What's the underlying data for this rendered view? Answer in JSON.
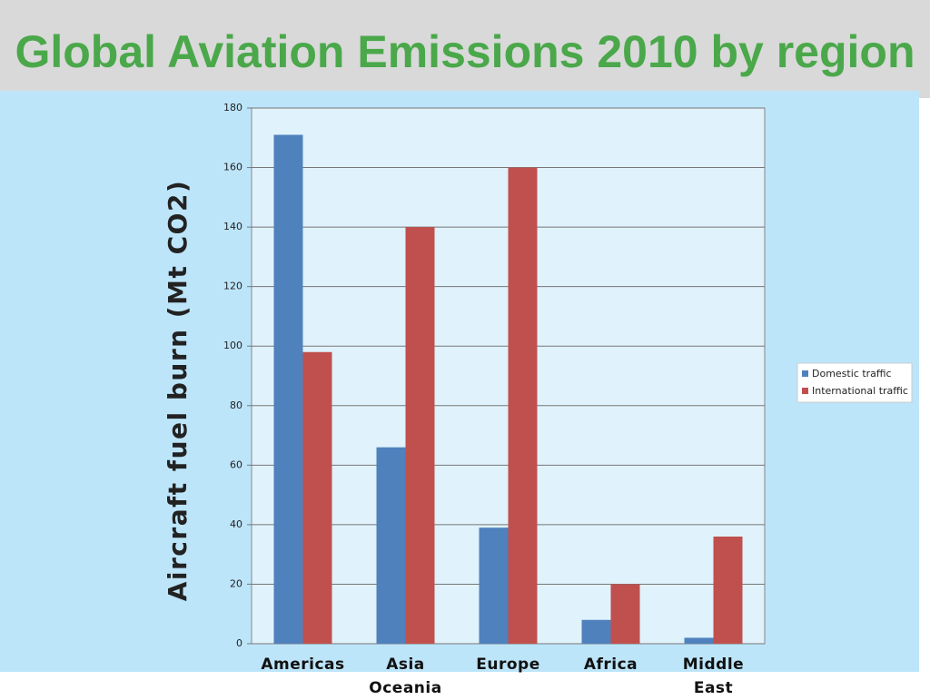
{
  "chart_data": {
    "type": "bar",
    "title": "Global Aviation Emissions 2010 by region",
    "y_label": "Aircraft fuel burn (Mt CO2)",
    "categories": [
      "Americas",
      "Asia Oceania",
      "Europe",
      "Africa",
      "Middle East"
    ],
    "series": [
      {
        "name": "Domestic traffic",
        "color": "#4f81bd",
        "values": [
          171,
          66,
          39,
          8,
          2
        ]
      },
      {
        "name": "International traffic",
        "color": "#c0504d",
        "values": [
          98,
          140,
          160,
          20,
          36
        ]
      }
    ],
    "ylim": [
      0,
      180
    ],
    "yticks": [
      0,
      20,
      40,
      60,
      80,
      100,
      120,
      140,
      160,
      180
    ],
    "grid": true,
    "legend": "right"
  }
}
